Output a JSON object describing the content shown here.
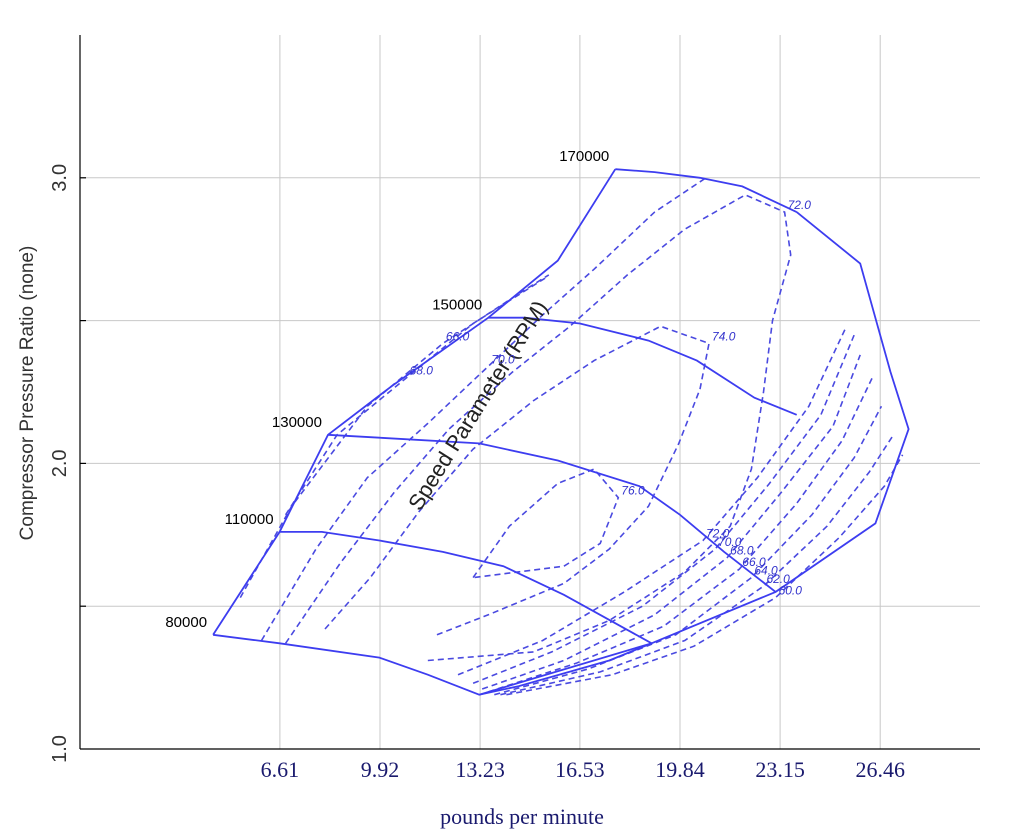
{
  "chart_data": {
    "type": "line",
    "title": "",
    "xlabel": "pounds per minute",
    "ylabel": "Compressor Pressure Ratio (none)",
    "annotation": "Speed Parameter (RPM)",
    "xlim": [
      0.0,
      29.76
    ],
    "ylim": [
      1.0,
      3.5
    ],
    "x_ticks": [
      "6.61",
      "9.92",
      "13.23",
      "16.53",
      "19.84",
      "23.15",
      "26.46"
    ],
    "x_tick_values": [
      6.61,
      9.92,
      13.23,
      16.53,
      19.84,
      23.15,
      26.46
    ],
    "y_ticks": [
      "1.0",
      "2.0",
      "3.0"
    ],
    "y_tick_values": [
      1.0,
      2.0,
      3.0
    ],
    "grid": true,
    "speed_lines": [
      {
        "label": "80000",
        "points": [
          [
            4.4,
            1.4
          ],
          [
            6.6,
            1.37
          ],
          [
            9.9,
            1.32
          ],
          [
            11.5,
            1.26
          ],
          [
            13.2,
            1.19
          ],
          [
            14.5,
            1.22
          ],
          [
            17.5,
            1.31
          ],
          [
            18.9,
            1.37
          ]
        ]
      },
      {
        "label": "110000",
        "points": [
          [
            6.6,
            1.76
          ],
          [
            8.0,
            1.76
          ],
          [
            9.9,
            1.73
          ],
          [
            12.0,
            1.69
          ],
          [
            14.0,
            1.64
          ],
          [
            16.0,
            1.54
          ],
          [
            18.9,
            1.37
          ]
        ]
      },
      {
        "label": "130000",
        "points": [
          [
            8.2,
            2.1
          ],
          [
            9.9,
            2.09
          ],
          [
            13.2,
            2.07
          ],
          [
            15.8,
            2.01
          ],
          [
            18.5,
            1.92
          ],
          [
            19.84,
            1.82
          ],
          [
            21.3,
            1.69
          ],
          [
            23.0,
            1.55
          ]
        ]
      },
      {
        "label": "150000",
        "points": [
          [
            13.5,
            2.51
          ],
          [
            14.7,
            2.51
          ],
          [
            16.53,
            2.49
          ],
          [
            18.8,
            2.43
          ],
          [
            20.4,
            2.36
          ],
          [
            22.3,
            2.23
          ],
          [
            23.7,
            2.17
          ]
        ]
      },
      {
        "label": "170000",
        "points": [
          [
            17.7,
            3.03
          ],
          [
            19.0,
            3.02
          ],
          [
            20.5,
            3.0
          ],
          [
            21.9,
            2.97
          ],
          [
            23.7,
            2.88
          ]
        ]
      }
    ],
    "surge_line": [
      [
        4.4,
        1.4
      ],
      [
        6.6,
        1.76
      ],
      [
        8.2,
        2.1
      ],
      [
        10.3,
        2.27
      ],
      [
        13.5,
        2.51
      ],
      [
        15.8,
        2.71
      ],
      [
        17.7,
        3.03
      ]
    ],
    "choke_line": [
      [
        13.2,
        1.19
      ],
      [
        18.9,
        1.37
      ],
      [
        23.0,
        1.55
      ],
      [
        26.3,
        1.79
      ],
      [
        27.4,
        2.12
      ],
      [
        26.8,
        2.32
      ],
      [
        25.8,
        2.7
      ],
      [
        23.7,
        2.88
      ]
    ],
    "efficiency_contours": [
      {
        "label": "66.0",
        "points": [
          [
            5.3,
            1.53
          ],
          [
            7.0,
            1.85
          ],
          [
            9.5,
            2.2
          ],
          [
            12.0,
            2.42
          ],
          [
            14.6,
            2.6
          ],
          [
            15.5,
            2.66
          ]
        ]
      },
      {
        "label": "68.0",
        "points": [
          [
            6.8,
            1.82
          ],
          [
            8.5,
            2.1
          ],
          [
            10.8,
            2.3
          ],
          [
            13.0,
            2.49
          ],
          [
            15.4,
            2.65
          ]
        ]
      },
      {
        "label": "70.0",
        "points": [
          [
            6.0,
            1.38
          ],
          [
            7.8,
            1.7
          ],
          [
            9.5,
            1.95
          ],
          [
            11.5,
            2.14
          ],
          [
            13.5,
            2.34
          ],
          [
            15.3,
            2.52
          ],
          [
            17.0,
            2.68
          ],
          [
            19.0,
            2.88
          ],
          [
            20.7,
            3.0
          ]
        ]
      },
      {
        "label": "72.0",
        "points": [
          [
            6.8,
            1.37
          ],
          [
            8.6,
            1.65
          ],
          [
            10.4,
            1.9
          ],
          [
            12.2,
            2.12
          ],
          [
            14.3,
            2.32
          ],
          [
            16.2,
            2.48
          ],
          [
            18.1,
            2.66
          ],
          [
            20.0,
            2.82
          ],
          [
            22.0,
            2.94
          ],
          [
            23.3,
            2.88
          ],
          [
            23.5,
            2.73
          ],
          [
            22.9,
            2.5
          ],
          [
            22.6,
            2.25
          ],
          [
            22.2,
            1.98
          ],
          [
            21.5,
            1.78
          ],
          [
            20.0,
            1.62
          ],
          [
            17.5,
            1.45
          ],
          [
            15.0,
            1.34
          ],
          [
            11.5,
            1.31
          ]
        ]
      },
      {
        "label": "74.0",
        "points": [
          [
            8.1,
            1.42
          ],
          [
            9.6,
            1.6
          ],
          [
            11.2,
            1.83
          ],
          [
            13.0,
            2.05
          ],
          [
            15.0,
            2.22
          ],
          [
            17.0,
            2.36
          ],
          [
            19.2,
            2.48
          ],
          [
            20.8,
            2.42
          ],
          [
            20.5,
            2.26
          ],
          [
            19.8,
            2.07
          ],
          [
            18.8,
            1.85
          ],
          [
            17.5,
            1.7
          ],
          [
            16.0,
            1.58
          ],
          [
            13.5,
            1.47
          ],
          [
            11.8,
            1.4
          ]
        ]
      },
      {
        "label": "76.0",
        "points": [
          [
            13.0,
            1.6
          ],
          [
            14.2,
            1.78
          ],
          [
            15.8,
            1.93
          ],
          [
            17.0,
            1.98
          ],
          [
            17.8,
            1.88
          ],
          [
            17.2,
            1.72
          ],
          [
            16.0,
            1.64
          ],
          [
            13.0,
            1.6
          ]
        ]
      },
      {
        "label": "72.0",
        "points": [
          [
            12.5,
            1.26
          ],
          [
            15.3,
            1.38
          ],
          [
            18.0,
            1.55
          ],
          [
            20.6,
            1.73
          ],
          [
            22.4,
            1.95
          ],
          [
            24.1,
            2.2
          ],
          [
            25.3,
            2.47
          ]
        ]
      },
      {
        "label": "70.0",
        "points": [
          [
            13.0,
            1.23
          ],
          [
            15.6,
            1.34
          ],
          [
            18.6,
            1.5
          ],
          [
            21.0,
            1.7
          ],
          [
            22.8,
            1.93
          ],
          [
            24.5,
            2.17
          ],
          [
            25.6,
            2.45
          ]
        ]
      },
      {
        "label": "68.0",
        "points": [
          [
            13.3,
            1.21
          ],
          [
            16.0,
            1.31
          ],
          [
            19.0,
            1.47
          ],
          [
            21.4,
            1.67
          ],
          [
            23.2,
            1.9
          ],
          [
            24.9,
            2.13
          ],
          [
            25.8,
            2.38
          ]
        ]
      },
      {
        "label": "66.0",
        "points": [
          [
            13.5,
            1.2
          ],
          [
            16.4,
            1.3
          ],
          [
            19.3,
            1.43
          ],
          [
            21.8,
            1.63
          ],
          [
            23.7,
            1.86
          ],
          [
            25.2,
            2.08
          ],
          [
            26.2,
            2.3
          ]
        ]
      },
      {
        "label": "64.0",
        "points": [
          [
            13.7,
            1.19
          ],
          [
            16.8,
            1.28
          ],
          [
            19.7,
            1.4
          ],
          [
            22.2,
            1.6
          ],
          [
            24.2,
            1.82
          ],
          [
            25.6,
            2.02
          ],
          [
            26.5,
            2.2
          ]
        ]
      },
      {
        "label": "62.0",
        "points": [
          [
            13.9,
            1.19
          ],
          [
            17.2,
            1.27
          ],
          [
            20.0,
            1.38
          ],
          [
            22.6,
            1.57
          ],
          [
            24.7,
            1.78
          ],
          [
            26.1,
            1.97
          ],
          [
            26.9,
            2.1
          ]
        ]
      },
      {
        "label": "60.0",
        "points": [
          [
            14.1,
            1.19
          ],
          [
            17.6,
            1.26
          ],
          [
            20.3,
            1.36
          ],
          [
            23.0,
            1.53
          ],
          [
            25.1,
            1.74
          ],
          [
            26.6,
            1.92
          ],
          [
            27.2,
            2.03
          ]
        ]
      }
    ]
  }
}
